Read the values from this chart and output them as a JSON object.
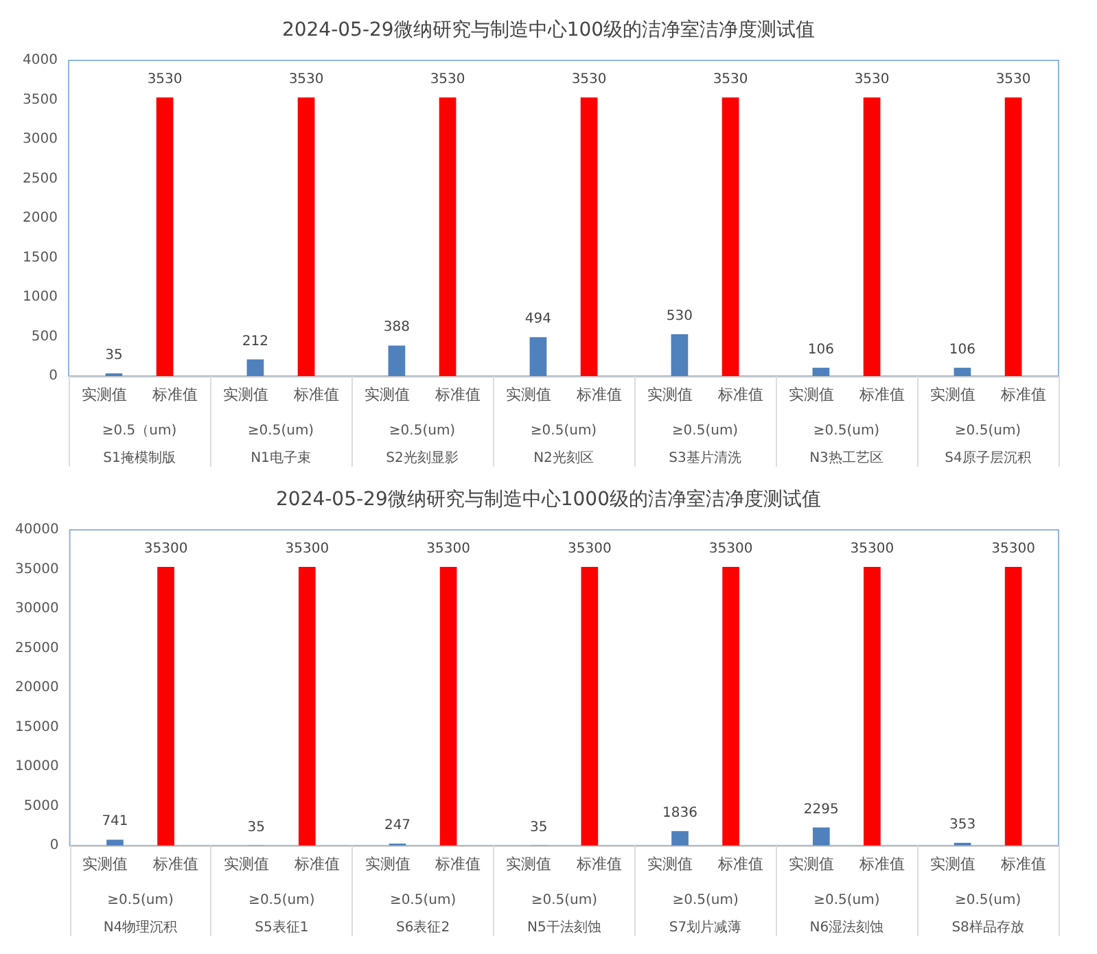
{
  "chart_data": [
    {
      "type": "bar",
      "title": "2024-05-29微纳研究与制造中心100级的洁净室洁净度测试值",
      "categories": [
        "≥0.5（um)\nS1掩模制版",
        "≥0.5(um)\nN1电子束",
        "≥0.5(um)\nS2光刻显影",
        "≥0.5(um)\nN2光刻区",
        "≥0.5(um)\nS3基片清洗",
        "≥0.5(um)\nN3热工艺区",
        "≥0.5(um)\nS4原子层沉积"
      ],
      "series": [
        {
          "name": "实测值",
          "color": "#4f81bd",
          "values": [
            35,
            212,
            388,
            494,
            530,
            106,
            106
          ]
        },
        {
          "name": "标准值",
          "color": "#ff0000",
          "values": [
            3530,
            3530,
            3530,
            3530,
            3530,
            3530,
            3530
          ]
        }
      ],
      "ylim": [
        0,
        4000
      ],
      "yticks": [
        0,
        500,
        1000,
        1500,
        2000,
        2500,
        3000,
        3500,
        4000
      ],
      "data_labels": true,
      "grid": false,
      "legend": false
    },
    {
      "type": "bar",
      "title": "2024-05-29微纳研究与制造中心1000级的洁净室洁净度测试值",
      "categories": [
        "≥0.5(um)\nN4物理沉积",
        "≥0.5(um)\nS5表征1",
        "≥0.5(um)\nS6表征2",
        "≥0.5(um)\nN5干法刻蚀",
        "≥0.5(um)\nS7划片减薄",
        "≥0.5(um)\nN6湿法刻蚀",
        "≥0.5(um)\nS8样品存放"
      ],
      "series": [
        {
          "name": "实测值",
          "color": "#4f81bd",
          "values": [
            741,
            35,
            247,
            35,
            1836,
            2295,
            353
          ]
        },
        {
          "name": "标准值",
          "color": "#ff0000",
          "values": [
            35300,
            35300,
            35300,
            35300,
            35300,
            35300,
            35300
          ]
        }
      ],
      "ylim": [
        0,
        40000
      ],
      "yticks": [
        0,
        5000,
        10000,
        15000,
        20000,
        25000,
        30000,
        35000,
        40000
      ],
      "data_labels": true,
      "grid": false,
      "legend": false
    }
  ]
}
